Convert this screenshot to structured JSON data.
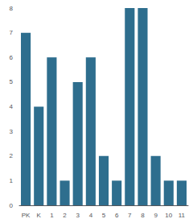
{
  "chart_data": {
    "type": "bar",
    "categories": [
      "PK",
      "K",
      "1",
      "2",
      "3",
      "4",
      "5",
      "6",
      "7",
      "8",
      "9",
      "10",
      "11"
    ],
    "values": [
      7,
      4,
      6,
      1,
      5,
      6,
      2,
      1,
      8,
      8,
      2,
      1,
      1
    ],
    "color": "#2e6e8e",
    "ylim": [
      0,
      8
    ],
    "yticks": [
      0,
      1,
      2,
      3,
      4,
      5,
      6,
      7,
      8
    ],
    "grid": false
  }
}
